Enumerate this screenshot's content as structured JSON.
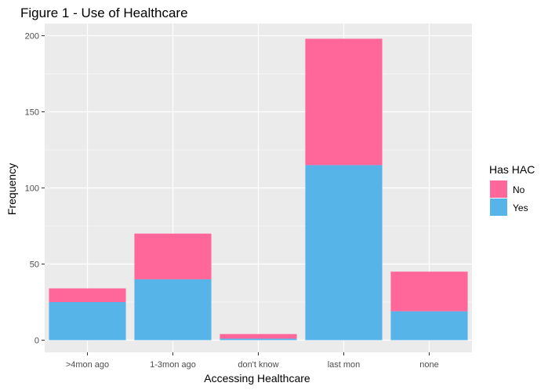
{
  "chart_data": {
    "type": "bar",
    "stacked": true,
    "title": "Figure 1 - Use of Healthcare",
    "xlabel": "Accessing Healthcare",
    "ylabel": "Frequency",
    "categories": [
      ">4mon ago",
      "1-3mon ago",
      "don't know",
      "last mon",
      "none"
    ],
    "series": [
      {
        "name": "Yes",
        "color": "#56B4E9",
        "values": [
          25,
          40,
          1,
          115,
          19
        ]
      },
      {
        "name": "No",
        "color": "#FF6699",
        "values": [
          9,
          30,
          3,
          83,
          26
        ]
      }
    ],
    "ylim": [
      -8,
      208
    ],
    "yticks": [
      0,
      50,
      100,
      150,
      200
    ],
    "grid": true,
    "panel_background": "#EBEBEB",
    "grid_color": "#FFFFFF",
    "legend": {
      "title": "Has HAC",
      "position": "right",
      "entries": [
        {
          "label": "No",
          "color": "#FF6699"
        },
        {
          "label": "Yes",
          "color": "#56B4E9"
        }
      ]
    }
  }
}
